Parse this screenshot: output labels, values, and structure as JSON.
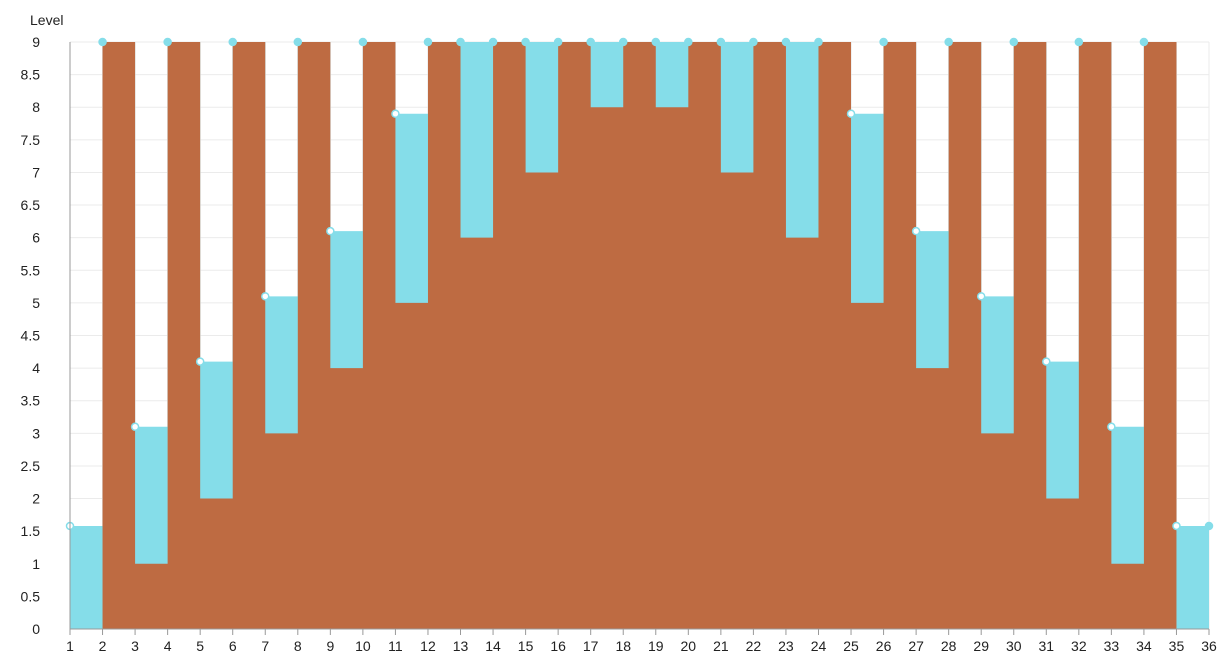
{
  "chart_data": {
    "type": "area",
    "step": "after",
    "stacked": false,
    "ylabel": "Level",
    "xlabel": "",
    "x": [
      1,
      2,
      3,
      4,
      5,
      6,
      7,
      8,
      9,
      10,
      11,
      12,
      13,
      14,
      15,
      16,
      17,
      18,
      19,
      20,
      21,
      22,
      23,
      24,
      25,
      26,
      27,
      28,
      29,
      30,
      31,
      32,
      33,
      34,
      35,
      36
    ],
    "x_ticks": [
      "1",
      "2",
      "3",
      "4",
      "5",
      "6",
      "7",
      "8",
      "9",
      "10",
      "11",
      "12",
      "13",
      "14",
      "15",
      "16",
      "17",
      "18",
      "19",
      "20",
      "21",
      "22",
      "23",
      "24",
      "25",
      "26",
      "27",
      "28",
      "29",
      "30",
      "31",
      "32",
      "33",
      "34",
      "35",
      "36"
    ],
    "ylim": [
      0,
      9
    ],
    "y_ticks": [
      "0",
      "0.5",
      "1",
      "1.5",
      "2",
      "2.5",
      "3",
      "3.5",
      "4",
      "4.5",
      "5",
      "5.5",
      "6",
      "6.5",
      "7",
      "7.5",
      "8",
      "8.5",
      "9"
    ],
    "grid": true,
    "series": [
      {
        "color": "#85dde9",
        "marker_fill": "#85dde9",
        "values": [
          1.58,
          9,
          3.1,
          9,
          4.1,
          9,
          5.1,
          9,
          6.1,
          9,
          7.9,
          9,
          9,
          9,
          9,
          9,
          9,
          9,
          9,
          9,
          9,
          9,
          9,
          9,
          7.9,
          9,
          6.1,
          9,
          5.1,
          9,
          4.1,
          9,
          3.1,
          9,
          1.58,
          1.58
        ]
      },
      {
        "color": "#be6b42",
        "values": [
          0,
          9,
          1,
          9,
          2,
          9,
          3,
          9,
          4,
          9,
          5,
          9,
          6,
          9,
          7,
          9,
          8,
          9,
          8,
          9,
          7,
          9,
          6,
          9,
          5,
          9,
          4,
          9,
          3,
          9,
          2,
          9,
          1,
          9,
          0,
          0
        ]
      }
    ]
  }
}
